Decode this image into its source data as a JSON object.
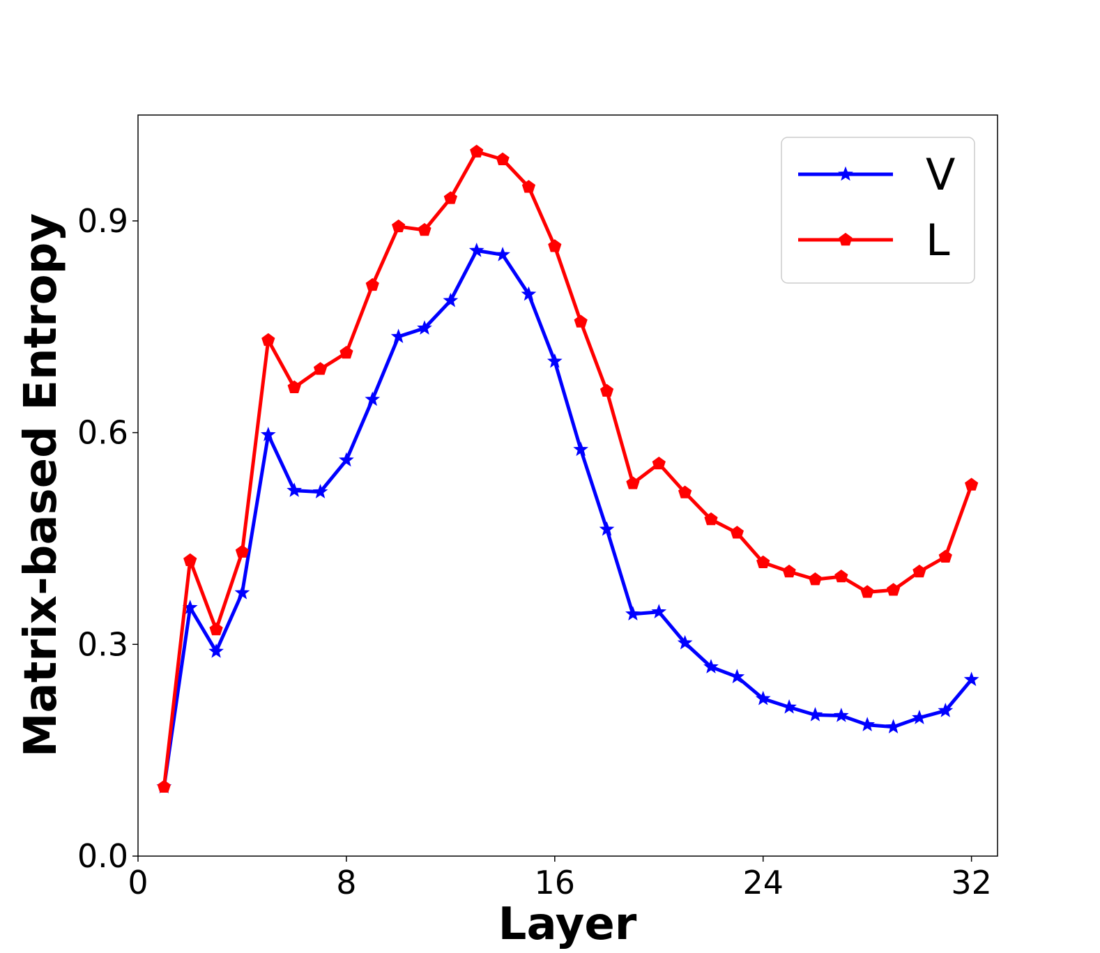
{
  "chart_data": {
    "type": "line",
    "title": "",
    "xlabel": "Layer",
    "ylabel": "Matrix-based Entropy",
    "xlim": [
      0,
      33
    ],
    "ylim": [
      0,
      1.05
    ],
    "xticks": [
      0,
      8,
      16,
      24,
      32
    ],
    "yticks": [
      0.0,
      0.3,
      0.6,
      0.9
    ],
    "xtick_labels": [
      "0",
      "8",
      "16",
      "24",
      "32"
    ],
    "ytick_labels": [
      "0.0",
      "0.3",
      "0.6",
      "0.9"
    ],
    "grid": false,
    "legend_position": "top-right",
    "x": [
      1,
      2,
      3,
      4,
      5,
      6,
      7,
      8,
      9,
      10,
      11,
      12,
      13,
      14,
      15,
      16,
      17,
      18,
      19,
      20,
      21,
      22,
      23,
      24,
      25,
      26,
      27,
      28,
      29,
      30,
      31,
      32
    ],
    "series": [
      {
        "name": "V",
        "color": "#0000ff",
        "marker": "star",
        "values": [
          0.098,
          0.352,
          0.29,
          0.373,
          0.597,
          0.518,
          0.516,
          0.561,
          0.647,
          0.736,
          0.748,
          0.787,
          0.858,
          0.852,
          0.796,
          0.701,
          0.576,
          0.463,
          0.343,
          0.346,
          0.302,
          0.268,
          0.254,
          0.223,
          0.211,
          0.2,
          0.199,
          0.186,
          0.183,
          0.196,
          0.206,
          0.25
        ]
      },
      {
        "name": "L",
        "color": "#ff0000",
        "marker": "pentagon",
        "values": [
          0.098,
          0.419,
          0.321,
          0.431,
          0.731,
          0.664,
          0.69,
          0.713,
          0.809,
          0.892,
          0.887,
          0.932,
          0.998,
          0.987,
          0.948,
          0.864,
          0.757,
          0.659,
          0.528,
          0.556,
          0.515,
          0.477,
          0.458,
          0.416,
          0.403,
          0.392,
          0.396,
          0.374,
          0.377,
          0.403,
          0.424,
          0.526
        ]
      }
    ]
  }
}
